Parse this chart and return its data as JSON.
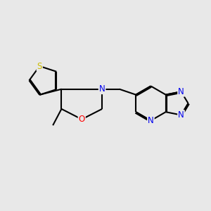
{
  "background_color": "#e8e8e8",
  "bond_color": "#000000",
  "bond_width": 1.5,
  "atom_colors": {
    "S": "#ccbb00",
    "O": "#ff0000",
    "N": "#0000ee",
    "C": "#000000"
  },
  "font_size": 7.5,
  "xlim": [
    -2.5,
    2.3
  ],
  "ylim": [
    -0.6,
    2.0
  ]
}
